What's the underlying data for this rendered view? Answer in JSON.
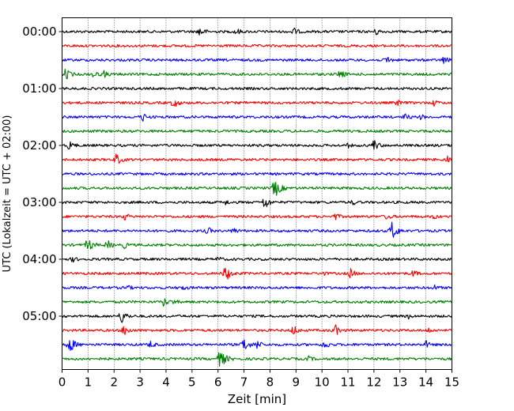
{
  "chart_data": {
    "type": "line",
    "title": "",
    "xlabel": "Zeit  [min]",
    "ylabel": "UTC (Lokalzeit = UTC + 02:00)",
    "xlim": [
      0,
      15
    ],
    "x_ticks": [
      0,
      1,
      2,
      3,
      4,
      5,
      6,
      7,
      8,
      9,
      10,
      11,
      12,
      13,
      14,
      15
    ],
    "x_tick_labels": [
      "0",
      "1",
      "2",
      "3",
      "4",
      "5",
      "6",
      "7",
      "8",
      "9",
      "10",
      "11",
      "12",
      "13",
      "14",
      "15"
    ],
    "y_tick_labels": [
      "00:00",
      "01:00",
      "02:00",
      "03:00",
      "04:00",
      "05:00"
    ],
    "y_tick_rows": [
      0,
      4,
      8,
      12,
      16,
      20
    ],
    "row_interval_minutes": 15,
    "grid": {
      "x": true,
      "y": false,
      "style": "dotted"
    },
    "color_cycle": [
      "#000000",
      "#ff0000",
      "#0000ff",
      "#008000"
    ],
    "series": [
      {
        "start": "00:00",
        "events": [
          [
            5.3,
            0.9
          ],
          [
            6.7,
            0.6
          ],
          [
            8.9,
            0.7
          ],
          [
            12.1,
            0.6
          ]
        ]
      },
      {
        "start": "00:15",
        "events": []
      },
      {
        "start": "00:30",
        "events": [
          [
            12.5,
            0.7
          ],
          [
            14.7,
            0.7
          ]
        ]
      },
      {
        "start": "00:45",
        "events": [
          [
            0.15,
            1.0
          ],
          [
            1.2,
            0.6
          ],
          [
            1.6,
            0.6
          ],
          [
            10.7,
            0.8
          ]
        ]
      },
      {
        "start": "01:00",
        "events": []
      },
      {
        "start": "01:15",
        "events": [
          [
            4.3,
            0.9
          ],
          [
            12.9,
            0.5
          ],
          [
            14.3,
            0.5
          ]
        ]
      },
      {
        "start": "01:30",
        "events": [
          [
            3.1,
            0.7
          ],
          [
            13.2,
            0.5
          ],
          [
            13.8,
            0.4
          ]
        ]
      },
      {
        "start": "01:45",
        "events": []
      },
      {
        "start": "02:00",
        "events": [
          [
            0.3,
            0.8
          ],
          [
            12.0,
            1.0
          ],
          [
            11.0,
            0.3
          ]
        ]
      },
      {
        "start": "02:15",
        "events": [
          [
            2.1,
            1.0
          ],
          [
            14.8,
            0.7
          ]
        ]
      },
      {
        "start": "02:30",
        "events": []
      },
      {
        "start": "02:45",
        "events": [
          [
            8.2,
            1.6
          ]
        ]
      },
      {
        "start": "03:00",
        "events": [
          [
            7.8,
            1.2
          ],
          [
            6.3,
            0.4
          ],
          [
            11.2,
            0.4
          ]
        ]
      },
      {
        "start": "03:15",
        "events": [
          [
            2.4,
            0.6
          ],
          [
            10.5,
            0.6
          ],
          [
            12.5,
            0.5
          ],
          [
            14.3,
            0.4
          ]
        ]
      },
      {
        "start": "03:30",
        "events": [
          [
            5.6,
            0.6
          ],
          [
            6.6,
            0.5
          ],
          [
            12.7,
            1.6
          ]
        ]
      },
      {
        "start": "03:45",
        "events": [
          [
            1.0,
            1.2
          ],
          [
            1.75,
            0.8
          ],
          [
            2.4,
            0.5
          ]
        ]
      },
      {
        "start": "04:00",
        "events": [
          [
            0.4,
            0.4
          ],
          [
            6.0,
            0.4
          ]
        ]
      },
      {
        "start": "04:15",
        "events": [
          [
            6.3,
            1.4
          ],
          [
            11.1,
            0.8
          ],
          [
            13.5,
            0.6
          ],
          [
            10.0,
            0.4
          ]
        ]
      },
      {
        "start": "04:30",
        "events": [
          [
            4.6,
            0.5
          ],
          [
            14.3,
            0.5
          ],
          [
            2.5,
            0.4
          ]
        ]
      },
      {
        "start": "04:45",
        "events": [
          [
            3.9,
            0.8
          ],
          [
            4.3,
            0.4
          ]
        ]
      },
      {
        "start": "05:00",
        "events": [
          [
            2.3,
            1.2
          ],
          [
            13.3,
            0.4
          ]
        ]
      },
      {
        "start": "05:15",
        "events": [
          [
            2.4,
            1.0
          ],
          [
            8.9,
            0.9
          ],
          [
            10.5,
            1.0
          ],
          [
            14.1,
            0.4
          ]
        ]
      },
      {
        "start": "05:30",
        "events": [
          [
            0.3,
            1.4
          ],
          [
            3.4,
            0.6
          ],
          [
            7.0,
            1.3
          ],
          [
            7.5,
            0.8
          ],
          [
            10.1,
            0.8
          ],
          [
            14.0,
            0.6
          ]
        ]
      },
      {
        "start": "05:45",
        "events": [
          [
            6.1,
            1.6
          ],
          [
            9.5,
            0.4
          ]
        ]
      }
    ]
  }
}
